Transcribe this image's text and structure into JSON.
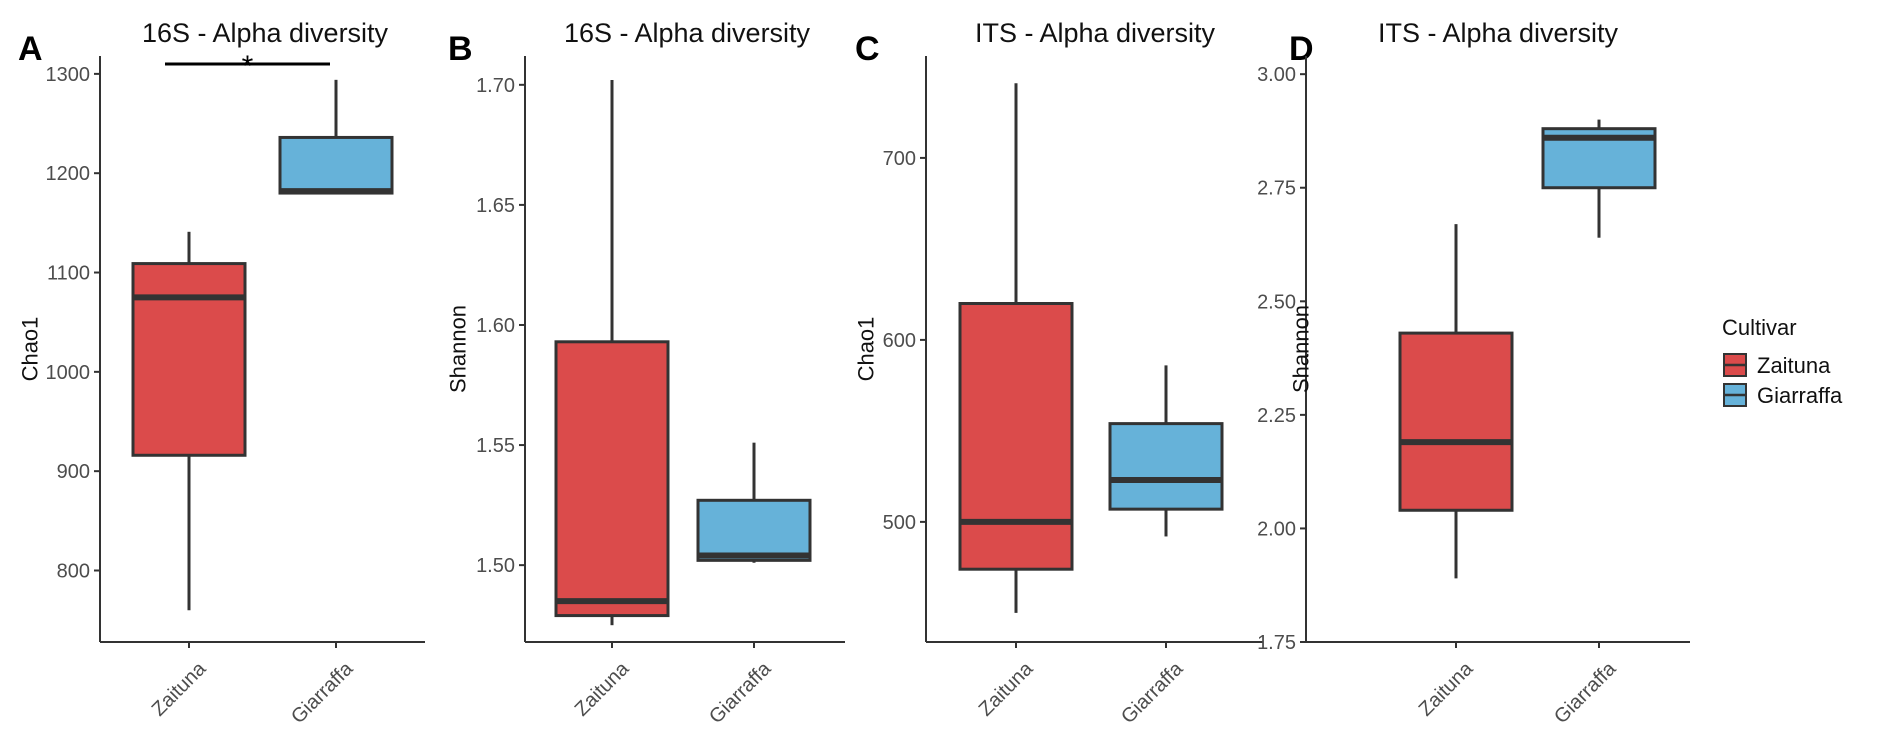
{
  "legend": {
    "title": "Cultivar",
    "entries": [
      {
        "label": "Zaituna",
        "color": "#DB4B4B"
      },
      {
        "label": "Giarraffa",
        "color": "#66B2D9"
      }
    ]
  },
  "chart_data": [
    {
      "panel": "A",
      "type": "box",
      "title": "16S - Alpha diversity",
      "xlabel": "",
      "ylabel": "Chao1",
      "ylim": [
        728,
        1318
      ],
      "yticks": [
        800,
        900,
        1000,
        1100,
        1200,
        1300
      ],
      "categories": [
        "Zaituna",
        "Giarraffa"
      ],
      "boxes": [
        {
          "category": "Zaituna",
          "min": 760,
          "q1": 916,
          "median": 1075,
          "q3": 1109,
          "max": 1141,
          "color": "#DB4B4B"
        },
        {
          "category": "Giarraffa",
          "min": 1180,
          "q1": 1180,
          "median": 1182,
          "q3": 1236,
          "max": 1294,
          "color": "#66B2D9"
        }
      ],
      "significance": {
        "label": "*",
        "between": [
          "Zaituna",
          "Giarraffa"
        ],
        "y": 1310
      }
    },
    {
      "panel": "B",
      "type": "box",
      "title": "16S - Alpha diversity",
      "xlabel": "",
      "ylabel": "Shannon",
      "ylim": [
        1.468,
        1.712
      ],
      "yticks": [
        1.5,
        1.55,
        1.6,
        1.65,
        1.7
      ],
      "tick_format": 2,
      "categories": [
        "Zaituna",
        "Giarraffa"
      ],
      "boxes": [
        {
          "category": "Zaituna",
          "min": 1.475,
          "q1": 1.479,
          "median": 1.485,
          "q3": 1.593,
          "max": 1.702,
          "color": "#DB4B4B"
        },
        {
          "category": "Giarraffa",
          "min": 1.501,
          "q1": 1.502,
          "median": 1.504,
          "q3": 1.527,
          "max": 1.551,
          "color": "#66B2D9"
        }
      ]
    },
    {
      "panel": "C",
      "type": "box",
      "title": "ITS - Alpha diversity",
      "xlabel": "",
      "ylabel": "Chao1",
      "ylim": [
        434,
        756
      ],
      "yticks": [
        500,
        600,
        700
      ],
      "categories": [
        "Zaituna",
        "Giarraffa"
      ],
      "boxes": [
        {
          "category": "Zaituna",
          "min": 450,
          "q1": 474,
          "median": 500,
          "q3": 620,
          "max": 741,
          "color": "#DB4B4B"
        },
        {
          "category": "Giarraffa",
          "min": 492,
          "q1": 507,
          "median": 523,
          "q3": 554,
          "max": 586,
          "color": "#66B2D9"
        }
      ]
    },
    {
      "panel": "D",
      "type": "box",
      "title": "ITS - Alpha diversity",
      "xlabel": "",
      "ylabel": "Shannon",
      "ylim": [
        1.75,
        3.04
      ],
      "yticks": [
        1.75,
        2.0,
        2.25,
        2.5,
        2.75,
        3.0
      ],
      "tick_format": 2,
      "categories": [
        "Zaituna",
        "Giarraffa"
      ],
      "boxes": [
        {
          "category": "Zaituna",
          "min": 1.89,
          "q1": 2.04,
          "median": 2.19,
          "q3": 2.43,
          "max": 2.67,
          "color": "#DB4B4B"
        },
        {
          "category": "Giarraffa",
          "min": 2.64,
          "q1": 2.75,
          "median": 2.86,
          "q3": 2.88,
          "max": 2.9,
          "color": "#66B2D9"
        }
      ]
    }
  ]
}
